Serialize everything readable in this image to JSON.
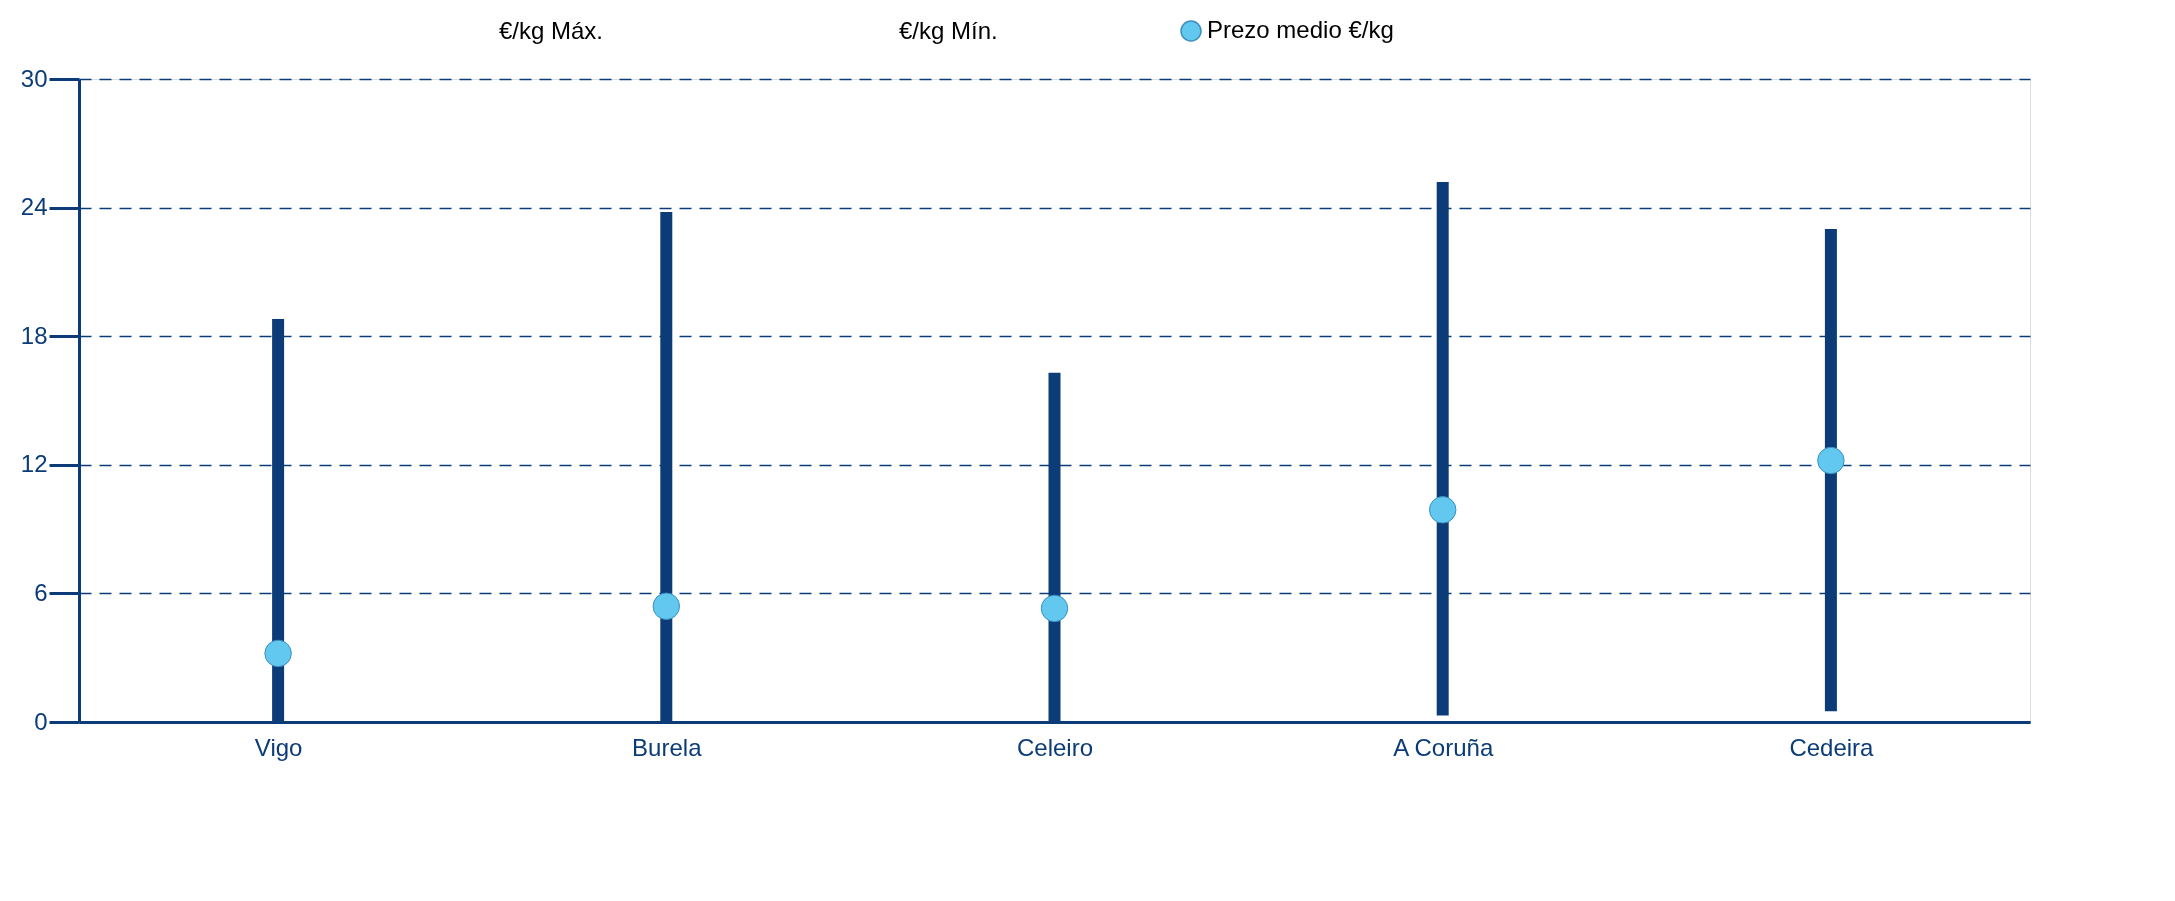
{
  "chart_data": {
    "type": "bar",
    "categories": [
      "Vigo",
      "Burela",
      "Celeiro",
      "A Coruña",
      "Cedeira"
    ],
    "series": [
      {
        "color": "#0b3c78",
        "values": [
          18.8,
          23.8,
          16.3,
          24.9,
          22.5
        ],
        "base": [
          0,
          0,
          0,
          0.3,
          0.5
        ]
      },
      {
        "name": "Prezo medio €/kg",
        "type": "scatter",
        "marker": "circle",
        "color": "#62c8ef",
        "values": [
          3.2,
          5.4,
          5.3,
          9.9,
          12.2
        ]
      }
    ],
    "annotations": [
      "€/kg Máx.",
      "€/kg Mín."
    ],
    "ylim": [
      0,
      30
    ],
    "yticks": [
      0,
      6,
      12,
      18,
      24,
      30
    ],
    "grid": "y",
    "line_style": "dashed",
    "legend": "top"
  }
}
